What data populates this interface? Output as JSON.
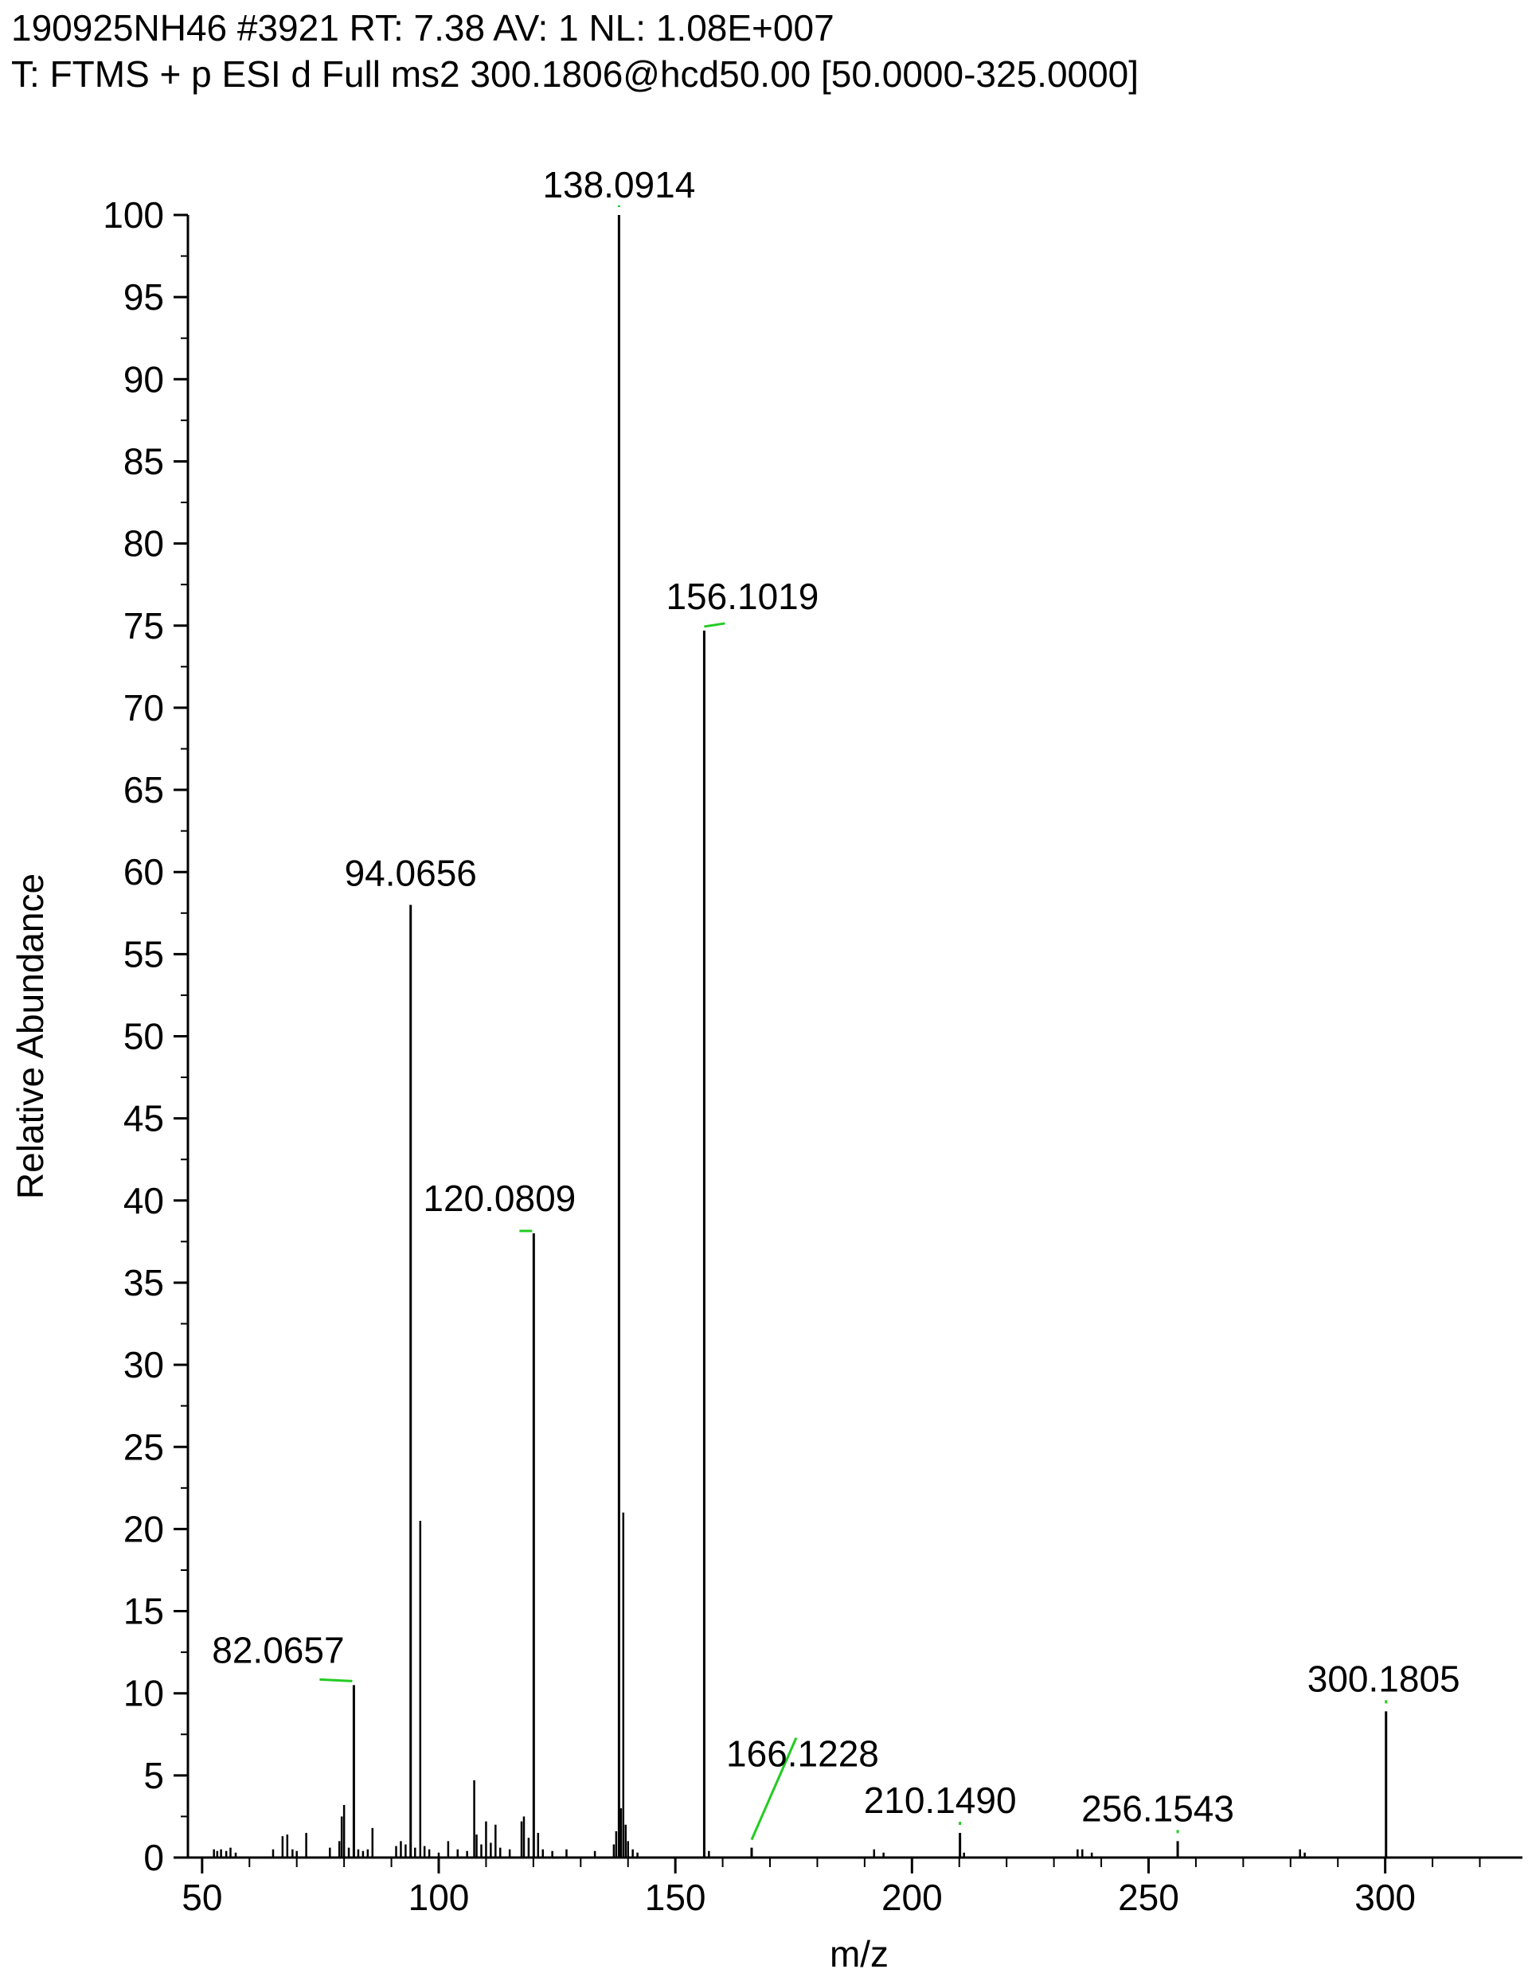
{
  "header": {
    "line1": "190925NH46 #3921 RT: 7.38 AV: 1 NL: 1.08E+007",
    "line2": "T: FTMS + p ESI d Full ms2 300.1806@hcd50.00 [50.0000-325.0000]"
  },
  "chart_data": {
    "type": "bar",
    "title": "",
    "xlabel": "m/z",
    "ylabel": "Relative Abundance",
    "xlim": [
      47,
      329
    ],
    "ylim": [
      0,
      100
    ],
    "x_ticks": [
      50,
      100,
      150,
      200,
      250,
      300
    ],
    "y_ticks": [
      0,
      5,
      10,
      15,
      20,
      25,
      30,
      35,
      40,
      45,
      50,
      55,
      60,
      65,
      70,
      75,
      80,
      85,
      90,
      95,
      100
    ],
    "grid": false,
    "colors": {
      "peaks": "#000000",
      "label_leader": "#22cc22"
    },
    "labeled_peaks": [
      {
        "mz": 82.0657,
        "abundance": 10.5,
        "label": "82.0657"
      },
      {
        "mz": 94.0656,
        "abundance": 58.0,
        "label": "94.0656"
      },
      {
        "mz": 120.0809,
        "abundance": 38.0,
        "label": "120.0809"
      },
      {
        "mz": 138.0914,
        "abundance": 100.0,
        "label": "138.0914"
      },
      {
        "mz": 156.1019,
        "abundance": 74.7,
        "label": "156.1019"
      },
      {
        "mz": 166.1228,
        "abundance": 0.6,
        "label": "166.1228"
      },
      {
        "mz": 210.149,
        "abundance": 1.5,
        "label": "210.1490"
      },
      {
        "mz": 256.1543,
        "abundance": 1.0,
        "label": "256.1543"
      },
      {
        "mz": 300.1805,
        "abundance": 8.9,
        "label": "300.1805"
      }
    ],
    "minor_peaks": [
      {
        "mz": 52.5,
        "abundance": 0.5
      },
      {
        "mz": 53.2,
        "abundance": 0.4
      },
      {
        "mz": 54.0,
        "abundance": 0.5
      },
      {
        "mz": 55.1,
        "abundance": 0.4
      },
      {
        "mz": 56.0,
        "abundance": 0.6
      },
      {
        "mz": 57.1,
        "abundance": 0.3
      },
      {
        "mz": 65.0,
        "abundance": 0.5
      },
      {
        "mz": 67.0,
        "abundance": 1.3
      },
      {
        "mz": 68.0,
        "abundance": 1.4
      },
      {
        "mz": 69.1,
        "abundance": 0.5
      },
      {
        "mz": 70.0,
        "abundance": 0.4
      },
      {
        "mz": 72.0,
        "abundance": 1.5
      },
      {
        "mz": 77.0,
        "abundance": 0.6
      },
      {
        "mz": 79.0,
        "abundance": 1.0
      },
      {
        "mz": 79.5,
        "abundance": 2.5
      },
      {
        "mz": 80.0,
        "abundance": 3.2
      },
      {
        "mz": 81.0,
        "abundance": 0.6
      },
      {
        "mz": 83.0,
        "abundance": 0.5
      },
      {
        "mz": 84.0,
        "abundance": 0.4
      },
      {
        "mz": 85.0,
        "abundance": 0.5
      },
      {
        "mz": 86.0,
        "abundance": 1.8
      },
      {
        "mz": 91.0,
        "abundance": 0.7
      },
      {
        "mz": 92.0,
        "abundance": 1.0
      },
      {
        "mz": 93.0,
        "abundance": 0.8
      },
      {
        "mz": 95.0,
        "abundance": 0.6
      },
      {
        "mz": 96.1,
        "abundance": 20.5
      },
      {
        "mz": 97.0,
        "abundance": 0.7
      },
      {
        "mz": 98.0,
        "abundance": 0.5
      },
      {
        "mz": 100.0,
        "abundance": 0.3
      },
      {
        "mz": 102.0,
        "abundance": 1.0
      },
      {
        "mz": 104.0,
        "abundance": 0.5
      },
      {
        "mz": 106.0,
        "abundance": 0.4
      },
      {
        "mz": 107.5,
        "abundance": 4.7
      },
      {
        "mz": 108.0,
        "abundance": 1.4
      },
      {
        "mz": 109.0,
        "abundance": 0.8
      },
      {
        "mz": 110.0,
        "abundance": 2.2
      },
      {
        "mz": 111.0,
        "abundance": 0.9
      },
      {
        "mz": 112.0,
        "abundance": 2.0
      },
      {
        "mz": 113.0,
        "abundance": 0.6
      },
      {
        "mz": 115.0,
        "abundance": 0.5
      },
      {
        "mz": 117.5,
        "abundance": 2.2
      },
      {
        "mz": 118.0,
        "abundance": 2.5
      },
      {
        "mz": 119.0,
        "abundance": 1.2
      },
      {
        "mz": 121.0,
        "abundance": 1.5
      },
      {
        "mz": 122.0,
        "abundance": 0.5
      },
      {
        "mz": 124.0,
        "abundance": 0.4
      },
      {
        "mz": 127.0,
        "abundance": 0.5
      },
      {
        "mz": 133.0,
        "abundance": 0.4
      },
      {
        "mz": 137.0,
        "abundance": 0.8
      },
      {
        "mz": 137.5,
        "abundance": 1.6
      },
      {
        "mz": 138.5,
        "abundance": 3.0
      },
      {
        "mz": 139.0,
        "abundance": 21.0
      },
      {
        "mz": 139.5,
        "abundance": 2.0
      },
      {
        "mz": 140.0,
        "abundance": 1.0
      },
      {
        "mz": 141.0,
        "abundance": 0.5
      },
      {
        "mz": 142.0,
        "abundance": 0.3
      },
      {
        "mz": 157.1,
        "abundance": 0.4
      },
      {
        "mz": 192.0,
        "abundance": 0.5
      },
      {
        "mz": 194.0,
        "abundance": 0.3
      },
      {
        "mz": 211.0,
        "abundance": 0.3
      },
      {
        "mz": 235.0,
        "abundance": 0.5
      },
      {
        "mz": 236.0,
        "abundance": 0.5
      },
      {
        "mz": 238.0,
        "abundance": 0.3
      },
      {
        "mz": 282.0,
        "abundance": 0.5
      },
      {
        "mz": 283.0,
        "abundance": 0.3
      }
    ]
  }
}
